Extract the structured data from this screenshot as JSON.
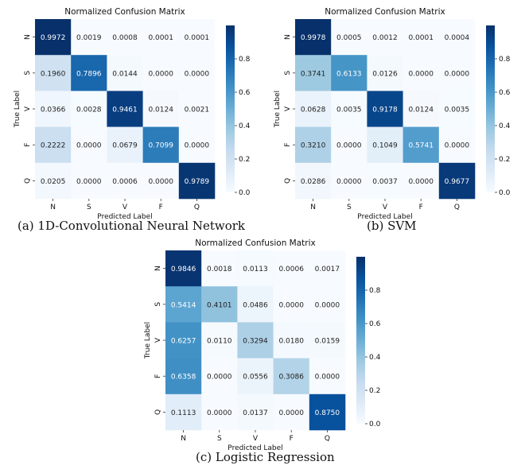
{
  "chart_data": [
    {
      "type": "heatmap",
      "title": "Normalized Confusion Matrix",
      "xlabel": "Predicted Label",
      "ylabel": "True Label",
      "x_categories": [
        "N",
        "S",
        "V",
        "F",
        "Q"
      ],
      "y_categories": [
        "N",
        "S",
        "V",
        "F",
        "Q"
      ],
      "values": [
        [
          0.9972,
          0.0019,
          0.0008,
          0.0001,
          0.0001
        ],
        [
          0.196,
          0.7896,
          0.0144,
          0.0,
          0.0
        ],
        [
          0.0366,
          0.0028,
          0.9461,
          0.0124,
          0.0021
        ],
        [
          0.2222,
          0.0,
          0.0679,
          0.7099,
          0.0
        ],
        [
          0.0205,
          0.0,
          0.0006,
          0.0,
          0.9789
        ]
      ],
      "colorbar": {
        "range": [
          0,
          1
        ],
        "ticks": [
          "0.0",
          "0.2",
          "0.4",
          "0.6",
          "0.8"
        ],
        "colormap": "Blues"
      },
      "caption": "(a) 1D-Convolutional Neural Network"
    },
    {
      "type": "heatmap",
      "title": "Normalized Confusion Matrix",
      "xlabel": "Predicted Label",
      "ylabel": "True Label",
      "x_categories": [
        "N",
        "S",
        "V",
        "F",
        "Q"
      ],
      "y_categories": [
        "N",
        "S",
        "V",
        "F",
        "Q"
      ],
      "values": [
        [
          0.9978,
          0.0005,
          0.0012,
          0.0001,
          0.0004
        ],
        [
          0.3741,
          0.6133,
          0.0126,
          0.0,
          0.0
        ],
        [
          0.0628,
          0.0035,
          0.9178,
          0.0124,
          0.0035
        ],
        [
          0.321,
          0.0,
          0.1049,
          0.5741,
          0.0
        ],
        [
          0.0286,
          0.0,
          0.0037,
          0.0,
          0.9677
        ]
      ],
      "colorbar": {
        "range": [
          0,
          1
        ],
        "ticks": [
          "0.0",
          "0.2",
          "0.4",
          "0.6",
          "0.8"
        ],
        "colormap": "Blues"
      },
      "caption": "(b) SVM"
    },
    {
      "type": "heatmap",
      "title": "Normalized Confusion Matrix",
      "xlabel": "Predicted Label",
      "ylabel": "True Label",
      "x_categories": [
        "N",
        "S",
        "V",
        "F",
        "Q"
      ],
      "y_categories": [
        "N",
        "S",
        "V",
        "F",
        "Q"
      ],
      "values": [
        [
          0.9846,
          0.0018,
          0.0113,
          0.0006,
          0.0017
        ],
        [
          0.5414,
          0.4101,
          0.0486,
          0.0,
          0.0
        ],
        [
          0.6257,
          0.011,
          0.3294,
          0.018,
          0.0159
        ],
        [
          0.6358,
          0.0,
          0.0556,
          0.3086,
          0.0
        ],
        [
          0.1113,
          0.0,
          0.0137,
          0.0,
          0.875
        ]
      ],
      "colorbar": {
        "range": [
          0,
          1
        ],
        "ticks": [
          "0.0",
          "0.2",
          "0.4",
          "0.6",
          "0.8"
        ],
        "colormap": "Blues"
      },
      "caption": "(c) Logistic Regression"
    }
  ]
}
